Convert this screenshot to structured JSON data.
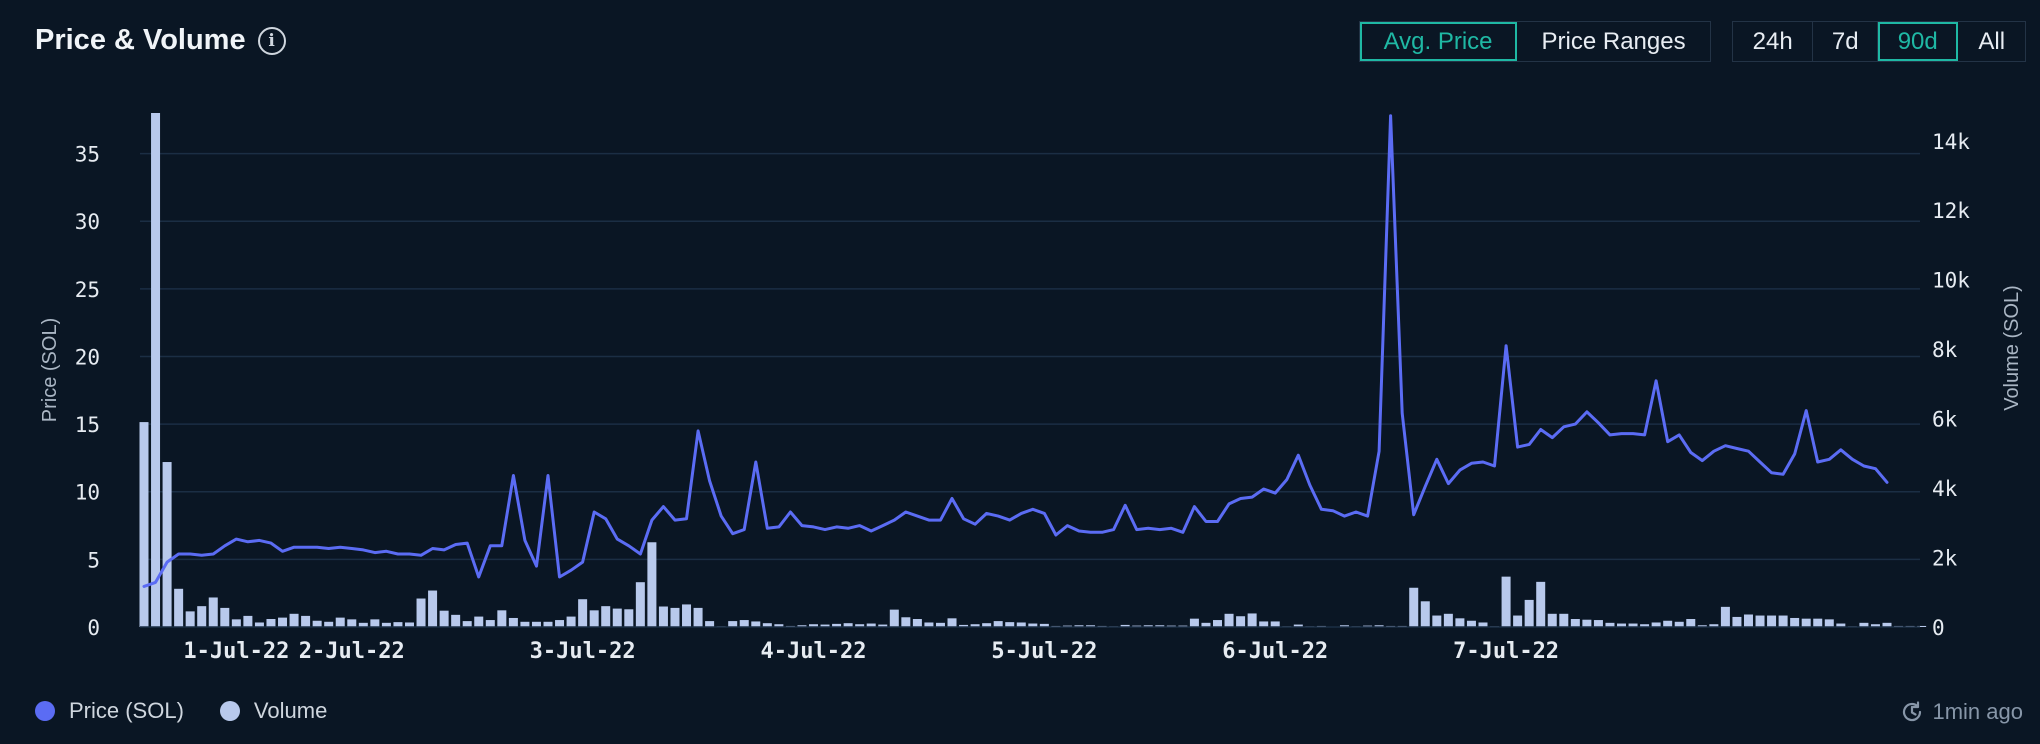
{
  "header": {
    "title": "Price & Volume",
    "info_icon": "info-icon"
  },
  "mode_tabs": [
    {
      "label": "Avg. Price",
      "active": true
    },
    {
      "label": "Price Ranges",
      "active": false
    }
  ],
  "range_tabs": [
    {
      "label": "24h",
      "active": false
    },
    {
      "label": "7d",
      "active": false
    },
    {
      "label": "90d",
      "active": true
    },
    {
      "label": "All",
      "active": false
    }
  ],
  "legend": [
    {
      "label": "Price (SOL)",
      "color": "#5b6cf4"
    },
    {
      "label": "Volume",
      "color": "#b8c9ec"
    }
  ],
  "footer": {
    "updated": "1min ago",
    "icon": "clock-refresh-icon"
  },
  "colors": {
    "background": "#0a1624",
    "accent": "#1fb8a4",
    "price_line": "#5b6cf4",
    "volume_bar": "#b8c9ec",
    "grid": "#1b2e44"
  },
  "chart_data": {
    "type": "line+bar",
    "x_ticks": [
      "1-Jul-22",
      "2-Jul-22",
      "3-Jul-22",
      "4-Jul-22",
      "5-Jul-22",
      "6-Jul-22",
      "7-Jul-22"
    ],
    "x_tick_index": [
      8,
      18,
      38,
      58,
      78,
      98,
      118
    ],
    "ylabel_left": "Price (SOL)",
    "ylabel_right": "Volume (SOL)",
    "ylim_left": [
      0,
      38
    ],
    "yticks_left": [
      0,
      5,
      10,
      15,
      20,
      25,
      30,
      35
    ],
    "ylim_right": [
      0,
      14800
    ],
    "yticks_right": [
      {
        "value": 2000,
        "label": "2k"
      },
      {
        "value": 4000,
        "label": "4k"
      },
      {
        "value": 6000,
        "label": "6k"
      },
      {
        "value": 8000,
        "label": "8k"
      },
      {
        "value": 10000,
        "label": "10k"
      },
      {
        "value": 12000,
        "label": "12k"
      },
      {
        "value": 14000,
        "label": "14k"
      }
    ],
    "grid": true,
    "legend_position": "bottom-left",
    "series": [
      {
        "name": "Price (SOL)",
        "type": "line",
        "values": [
          3.0,
          3.3,
          4.8,
          5.4,
          5.4,
          5.3,
          5.4,
          6.0,
          6.5,
          6.3,
          6.4,
          6.2,
          5.6,
          5.9,
          5.9,
          5.9,
          5.8,
          5.9,
          5.8,
          5.7,
          5.5,
          5.6,
          5.4,
          5.4,
          5.3,
          5.8,
          5.7,
          6.1,
          6.2,
          3.7,
          6.0,
          6.0,
          11.2,
          6.4,
          4.5,
          11.2,
          3.7,
          4.2,
          4.8,
          8.5,
          8.0,
          6.5,
          6.0,
          5.4,
          7.9,
          8.9,
          7.9,
          8.0,
          14.5,
          10.8,
          8.2,
          6.9,
          7.2,
          12.2,
          7.3,
          7.4,
          8.5,
          7.5,
          7.4,
          7.2,
          7.4,
          7.3,
          7.5,
          7.1,
          7.5,
          7.9,
          8.5,
          8.2,
          7.9,
          7.9,
          9.5,
          8.0,
          7.6,
          8.4,
          8.2,
          7.9,
          8.4,
          8.7,
          8.4,
          6.8,
          7.5,
          7.1,
          7.0,
          7.0,
          7.2,
          9.0,
          7.2,
          7.3,
          7.2,
          7.3,
          7.0,
          8.9,
          7.8,
          7.8,
          9.1,
          9.5,
          9.6,
          10.2,
          9.9,
          10.9,
          12.7,
          10.5,
          8.7,
          8.6,
          8.2,
          8.5,
          8.2,
          13.0,
          37.8,
          15.8,
          8.3,
          10.4,
          12.4,
          10.6,
          11.6,
          12.1,
          12.2,
          11.9,
          20.8,
          13.3,
          13.5,
          14.6,
          14.0,
          14.8,
          15.0,
          15.9,
          15.1,
          14.2,
          14.3,
          14.3,
          14.2,
          18.2,
          13.7,
          14.2,
          12.9,
          12.3,
          13.0,
          13.4,
          13.2,
          13.0,
          12.2,
          11.4,
          11.3,
          12.8,
          16.0,
          12.2,
          12.4,
          13.1,
          12.4,
          11.9,
          11.7,
          10.7
        ]
      },
      {
        "name": "Volume",
        "type": "bar",
        "values": [
          5900,
          14800,
          4750,
          1100,
          450,
          600,
          850,
          550,
          220,
          320,
          130,
          230,
          270,
          380,
          320,
          180,
          150,
          270,
          220,
          120,
          220,
          120,
          140,
          130,
          820,
          1050,
          470,
          350,
          170,
          300,
          200,
          480,
          260,
          150,
          150,
          150,
          200,
          300,
          800,
          480,
          600,
          530,
          510,
          1290,
          2440,
          590,
          550,
          650,
          550,
          170,
          20,
          170,
          200,
          160,
          110,
          80,
          30,
          50,
          80,
          70,
          90,
          110,
          80,
          100,
          70,
          500,
          280,
          230,
          130,
          120,
          250,
          60,
          80,
          110,
          170,
          140,
          130,
          100,
          90,
          30,
          40,
          50,
          50,
          30,
          20,
          60,
          40,
          50,
          50,
          40,
          40,
          240,
          120,
          200,
          380,
          310,
          390,
          160,
          160,
          20,
          70,
          20,
          30,
          10,
          50,
          20,
          40,
          50,
          30,
          30,
          1130,
          740,
          330,
          380,
          250,
          180,
          130,
          20,
          1450,
          330,
          780,
          1300,
          380,
          380,
          230,
          210,
          200,
          120,
          100,
          100,
          80,
          130,
          180,
          150,
          230,
          50,
          80,
          580,
          290,
          360,
          330,
          330,
          330,
          260,
          240,
          240,
          220,
          100,
          20,
          120,
          80,
          120,
          30,
          30,
          30
        ]
      }
    ]
  }
}
